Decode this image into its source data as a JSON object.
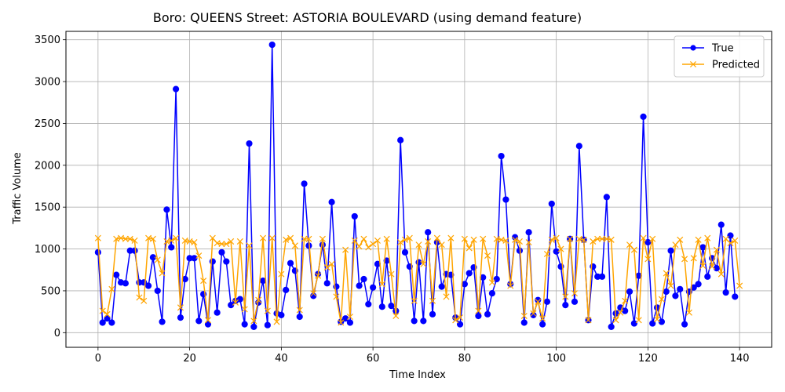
{
  "chart_data": {
    "type": "line",
    "title": "Boro: QUEENS Street: ASTORIA BOULEVARD (using demand feature)",
    "xlabel": "Time Index",
    "ylabel": "Traffic Volume",
    "xlim": [
      -7,
      147
    ],
    "ylim": [
      -175,
      3600
    ],
    "x_ticks": [
      0,
      20,
      40,
      60,
      80,
      100,
      120,
      140
    ],
    "y_ticks": [
      0,
      500,
      1000,
      1500,
      2000,
      2500,
      3000,
      3500
    ],
    "grid": true,
    "legend_position": "top-right",
    "series": [
      {
        "name": "True",
        "color": "#0000ff",
        "marker": "circle",
        "values": [
          960,
          120,
          170,
          120,
          690,
          600,
          590,
          980,
          980,
          600,
          600,
          560,
          900,
          500,
          130,
          1470,
          1020,
          2910,
          180,
          640,
          890,
          890,
          140,
          460,
          100,
          850,
          240,
          960,
          850,
          330,
          380,
          400,
          100,
          2260,
          70,
          360,
          620,
          90,
          3440,
          230,
          210,
          510,
          830,
          740,
          190,
          1780,
          1040,
          440,
          700,
          1050,
          590,
          1560,
          550,
          130,
          170,
          120,
          1390,
          560,
          640,
          340,
          540,
          820,
          310,
          860,
          320,
          260,
          2300,
          960,
          790,
          140,
          840,
          140,
          1200,
          220,
          1080,
          550,
          700,
          690,
          180,
          100,
          580,
          710,
          780,
          200,
          660,
          220,
          470,
          640,
          2110,
          1590,
          580,
          1140,
          980,
          120,
          1200,
          210,
          390,
          100,
          370,
          1540,
          970,
          790,
          330,
          1120,
          370,
          2230,
          1110,
          150,
          790,
          670,
          670,
          1620,
          70,
          230,
          300,
          260,
          490,
          110,
          680,
          2580,
          1080,
          110,
          300,
          130,
          490,
          980,
          440,
          520,
          100,
          490,
          540,
          580,
          1020,
          670,
          890,
          770,
          1290,
          480,
          1160,
          430
        ]
      },
      {
        "name": "Predicted",
        "color": "#ffa500",
        "marker": "x",
        "values": [
          1130,
          260,
          220,
          520,
          1120,
          1130,
          1120,
          1120,
          1100,
          420,
          380,
          1130,
          1120,
          870,
          710,
          1090,
          1100,
          1130,
          300,
          1100,
          1090,
          1080,
          920,
          620,
          150,
          1130,
          1070,
          1060,
          1060,
          1090,
          360,
          1090,
          280,
          1040,
          140,
          390,
          1130,
          260,
          1130,
          130,
          700,
          1110,
          1130,
          1040,
          270,
          1120,
          1120,
          470,
          680,
          1120,
          780,
          820,
          430,
          120,
          990,
          190,
          1100,
          1030,
          1120,
          1020,
          1060,
          1100,
          580,
          1120,
          700,
          200,
          1080,
          1110,
          1130,
          380,
          1050,
          820,
          1090,
          380,
          1130,
          1050,
          430,
          1130,
          150,
          180,
          1120,
          1010,
          1110,
          260,
          1120,
          920,
          600,
          1120,
          1110,
          1100,
          560,
          1110,
          1090,
          200,
          1080,
          230,
          370,
          170,
          940,
          1110,
          1130,
          1000,
          430,
          1120,
          470,
          1120,
          1110,
          150,
          1090,
          1120,
          1120,
          1120,
          1110,
          150,
          240,
          380,
          1050,
          990,
          150,
          1130,
          880,
          1120,
          160,
          400,
          710,
          560,
          1050,
          1110,
          880,
          240,
          890,
          1110,
          800,
          1130,
          790,
          990,
          700,
          1120,
          1070,
          1100,
          560
        ]
      }
    ]
  }
}
